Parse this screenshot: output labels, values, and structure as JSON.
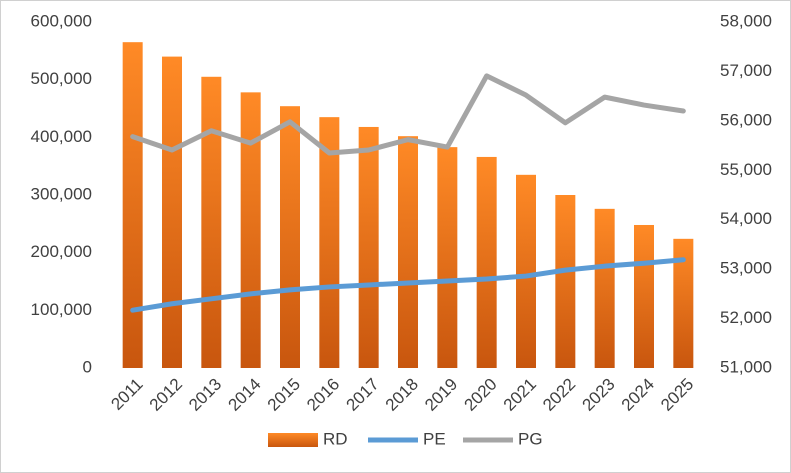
{
  "chart_data": {
    "type": "bar",
    "categories": [
      "2011",
      "2012",
      "2013",
      "2014",
      "2015",
      "2016",
      "2017",
      "2018",
      "2019",
      "2020",
      "2021",
      "2022",
      "2023",
      "2024",
      "2025"
    ],
    "series": [
      {
        "name": "RD",
        "type": "bar",
        "color": "#f07a1a",
        "values": [
          565000,
          540000,
          505000,
          478000,
          454000,
          435000,
          418000,
          402000,
          383000,
          366000,
          335000,
          300000,
          276000,
          248000,
          224000
        ]
      },
      {
        "name": "PE",
        "type": "line",
        "axis": "y2",
        "color": "#5b9bd5",
        "values": [
          52170,
          52300,
          52400,
          52500,
          52580,
          52640,
          52680,
          52720,
          52760,
          52800,
          52860,
          52980,
          53060,
          53120,
          53190
        ]
      },
      {
        "name": "PG",
        "type": "line",
        "axis": "y2",
        "color": "#a5a5a5",
        "values": [
          55680,
          55410,
          55800,
          55550,
          55980,
          55350,
          55410,
          55620,
          55470,
          56910,
          56520,
          55960,
          56480,
          56320,
          56200
        ]
      }
    ],
    "ylim": [
      0,
      600000
    ],
    "yticks": [
      0,
      {
        "value": 100000,
        "label": "100,000"
      },
      {
        "value": 200000,
        "label": "200,000"
      },
      {
        "value": 300000,
        "label": "300,000"
      },
      {
        "value": 400000,
        "label": "400,000"
      },
      {
        "value": 500000,
        "label": "500,000"
      },
      {
        "value": 600000,
        "label": "600,000"
      }
    ],
    "y2lim": [
      51000,
      58000
    ],
    "y2ticks": [
      {
        "value": 51000,
        "label": "51,000"
      },
      {
        "value": 52000,
        "label": "52,000"
      },
      {
        "value": 53000,
        "label": "53,000"
      },
      {
        "value": 54000,
        "label": "54,000"
      },
      {
        "value": 55000,
        "label": "55,000"
      },
      {
        "value": 56000,
        "label": "56,000"
      },
      {
        "value": 57000,
        "label": "57,000"
      },
      {
        "value": 58000,
        "label": "58,000"
      }
    ],
    "legend": "bottom"
  }
}
